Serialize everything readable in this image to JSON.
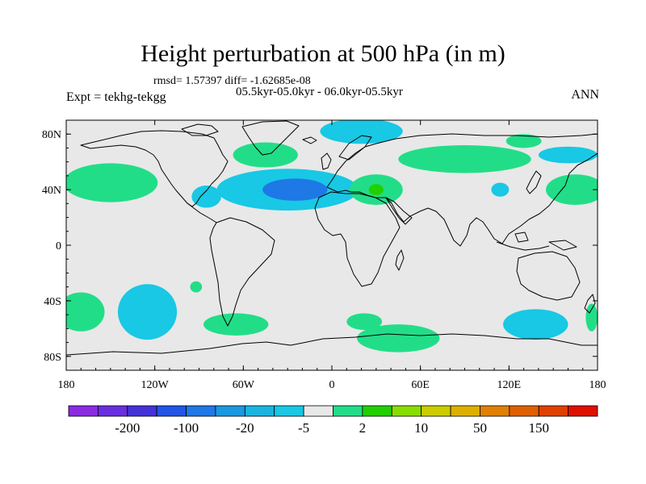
{
  "title": "Height perturbation at 500 hPa (in m)",
  "stats_line": "rmsd= 1.57397 diff= -1.62685e-08",
  "period_line": "05.5kyr-05.0kyr - 06.0kyr-05.5kyr",
  "experiment_label": "Expt = tekhg-tekgg",
  "season_label": "ANN",
  "map": {
    "projection": "cylindrical equidistant",
    "lon_range": [
      -180,
      180
    ],
    "lat_range": [
      -90,
      90
    ],
    "ocean_land_fill": "#e8e8e8",
    "coastline_color": "#000000"
  },
  "axes": {
    "x_ticks": [
      {
        "value": -180,
        "label": "180"
      },
      {
        "value": -120,
        "label": "120W"
      },
      {
        "value": -60,
        "label": "60W"
      },
      {
        "value": 0,
        "label": "0"
      },
      {
        "value": 60,
        "label": "60E"
      },
      {
        "value": 120,
        "label": "120E"
      },
      {
        "value": 180,
        "label": "180"
      }
    ],
    "y_ticks": [
      {
        "value": 80,
        "label": "80N"
      },
      {
        "value": 40,
        "label": "40N"
      },
      {
        "value": 0,
        "label": "0"
      },
      {
        "value": -40,
        "label": "40S"
      },
      {
        "value": -80,
        "label": "80S"
      }
    ]
  },
  "colorbar": {
    "colors": [
      "#8a2be2",
      "#6a2fe0",
      "#4433d8",
      "#2255e8",
      "#1e78e6",
      "#1a98e0",
      "#19b4e0",
      "#18c8e4",
      "#e8e8e8",
      "#22dd88",
      "#22d000",
      "#88dd00",
      "#cccc00",
      "#ddb000",
      "#e08000",
      "#e06000",
      "#e04000",
      "#e01000"
    ],
    "labels": [
      {
        "after_box": 1,
        "text": "-200"
      },
      {
        "after_box": 3,
        "text": "-100"
      },
      {
        "after_box": 5,
        "text": "-20"
      },
      {
        "after_box": 7,
        "text": "-5"
      },
      {
        "after_box": 9,
        "text": "2"
      },
      {
        "after_box": 11,
        "text": "10"
      },
      {
        "after_box": 13,
        "text": "50"
      },
      {
        "after_box": 15,
        "text": "150"
      }
    ]
  },
  "anomaly_regions": [
    {
      "kind": "positive",
      "level": "2",
      "lon": -150,
      "lat": 45,
      "rx": 32,
      "ry": 14
    },
    {
      "kind": "negative",
      "level": "-5",
      "lon": -85,
      "lat": 35,
      "rx": 10,
      "ry": 8
    },
    {
      "kind": "negative",
      "level": "-5",
      "lon": -30,
      "lat": 40,
      "rx": 48,
      "ry": 15
    },
    {
      "kind": "negative",
      "level": "-20",
      "lon": -25,
      "lat": 40,
      "rx": 22,
      "ry": 8
    },
    {
      "kind": "positive",
      "level": "2",
      "lon": -45,
      "lat": 65,
      "rx": 22,
      "ry": 9
    },
    {
      "kind": "negative",
      "level": "-5",
      "lon": 20,
      "lat": 82,
      "rx": 28,
      "ry": 9
    },
    {
      "kind": "positive",
      "level": "2",
      "lon": 30,
      "lat": 40,
      "rx": 18,
      "ry": 11
    },
    {
      "kind": "positive",
      "level": "10",
      "lon": 30,
      "lat": 40,
      "rx": 5,
      "ry": 4
    },
    {
      "kind": "positive",
      "level": "2",
      "lon": 90,
      "lat": 62,
      "rx": 45,
      "ry": 10
    },
    {
      "kind": "positive",
      "level": "2",
      "lon": 130,
      "lat": 75,
      "rx": 12,
      "ry": 5
    },
    {
      "kind": "positive",
      "level": "2",
      "lon": 165,
      "lat": 40,
      "rx": 20,
      "ry": 11
    },
    {
      "kind": "negative",
      "level": "-5",
      "lon": 114,
      "lat": 40,
      "rx": 6,
      "ry": 5
    },
    {
      "kind": "negative",
      "level": "-5",
      "lon": 160,
      "lat": 65,
      "rx": 20,
      "ry": 6
    },
    {
      "kind": "positive",
      "level": "2",
      "lon": -170,
      "lat": -48,
      "rx": 16,
      "ry": 14
    },
    {
      "kind": "negative",
      "level": "-5",
      "lon": -125,
      "lat": -48,
      "rx": 20,
      "ry": 20
    },
    {
      "kind": "positive",
      "level": "2",
      "lon": -92,
      "lat": -30,
      "rx": 4,
      "ry": 4
    },
    {
      "kind": "positive",
      "level": "2",
      "lon": -65,
      "lat": -57,
      "rx": 22,
      "ry": 8
    },
    {
      "kind": "positive",
      "level": "2",
      "lon": 22,
      "lat": -55,
      "rx": 12,
      "ry": 6
    },
    {
      "kind": "positive",
      "level": "2",
      "lon": 45,
      "lat": -67,
      "rx": 28,
      "ry": 10
    },
    {
      "kind": "negative",
      "level": "-5",
      "lon": 138,
      "lat": -57,
      "rx": 22,
      "ry": 11
    },
    {
      "kind": "positive",
      "level": "2",
      "lon": 176,
      "lat": -52,
      "rx": 4,
      "ry": 10
    }
  ]
}
